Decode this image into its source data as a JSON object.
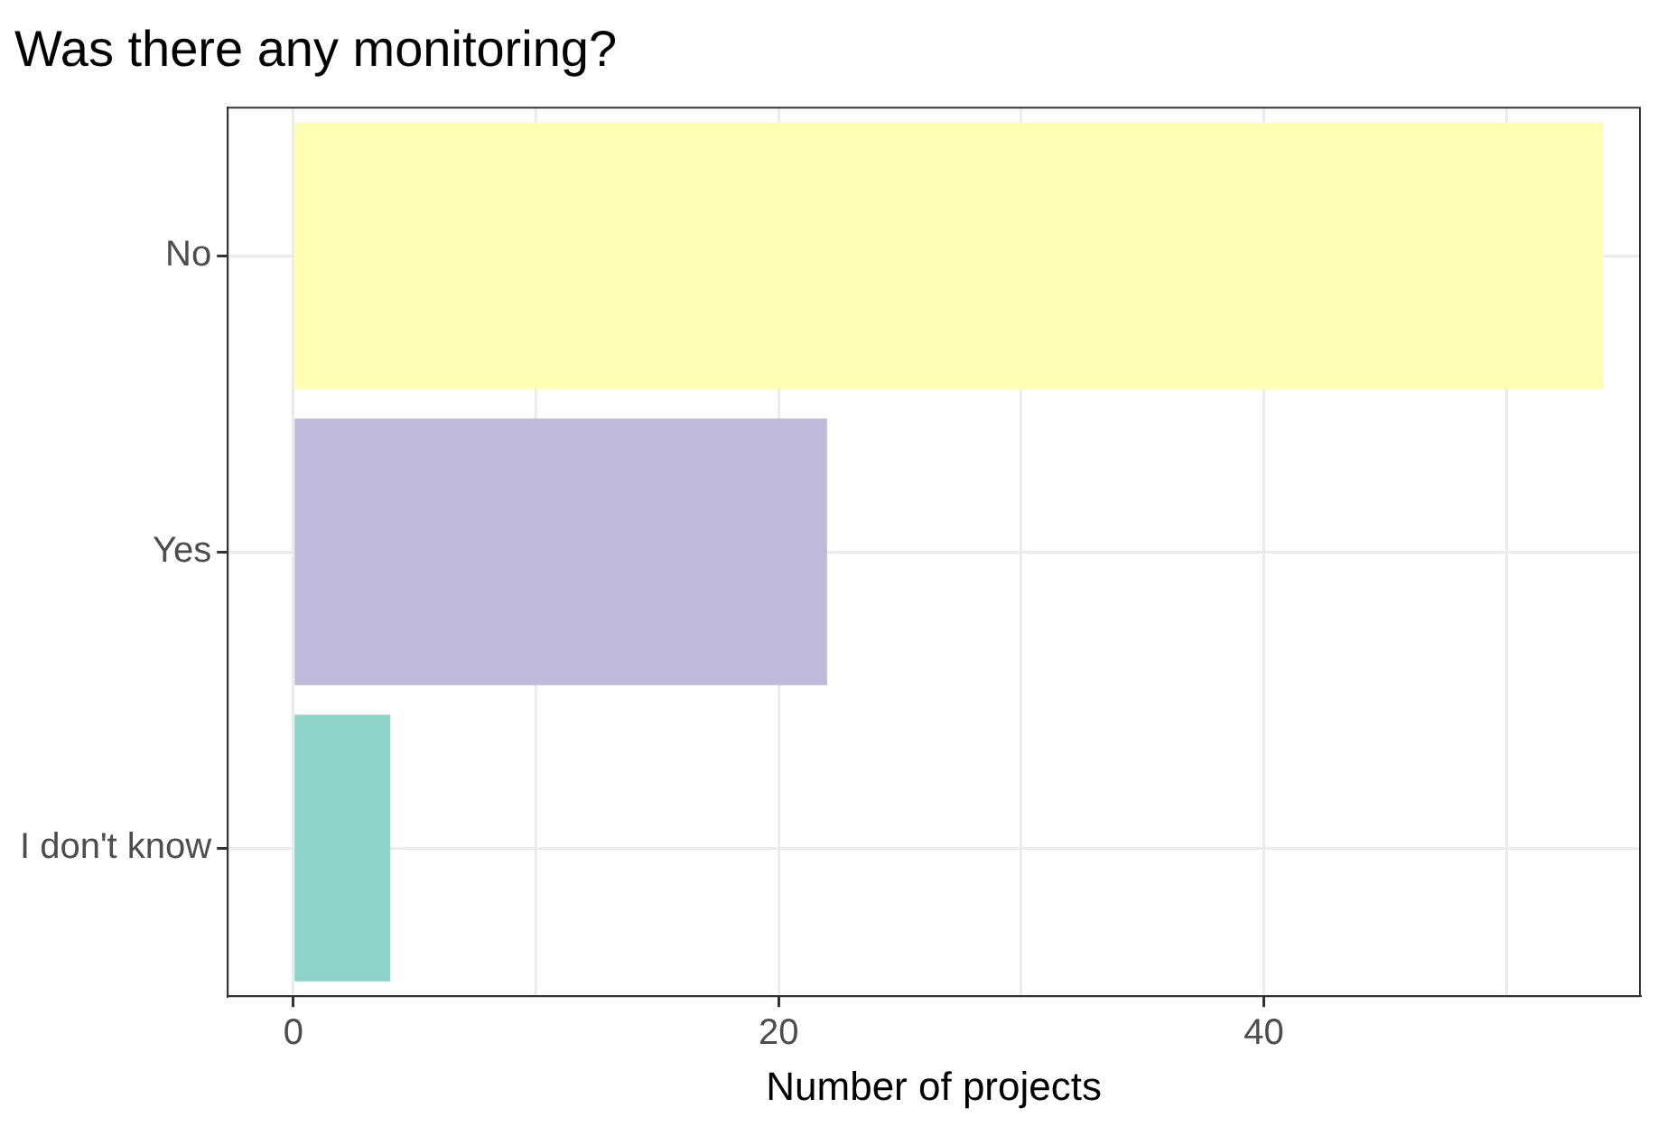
{
  "chart_data": {
    "type": "bar",
    "orientation": "horizontal",
    "title": "Was there any monitoring?",
    "xlabel": "Number of projects",
    "categories": [
      "No",
      "Yes",
      "I don't know"
    ],
    "values": [
      54,
      22,
      4
    ],
    "colors": [
      "#ffffb3",
      "#bebada",
      "#8dd3c7"
    ],
    "xlim": [
      -2.7,
      55.5
    ],
    "xticks": [
      0,
      {
        "value": 10,
        "label": null
      },
      20,
      {
        "value": 30,
        "label": null
      },
      40,
      {
        "value": 50,
        "label": null
      }
    ],
    "grid": true
  }
}
